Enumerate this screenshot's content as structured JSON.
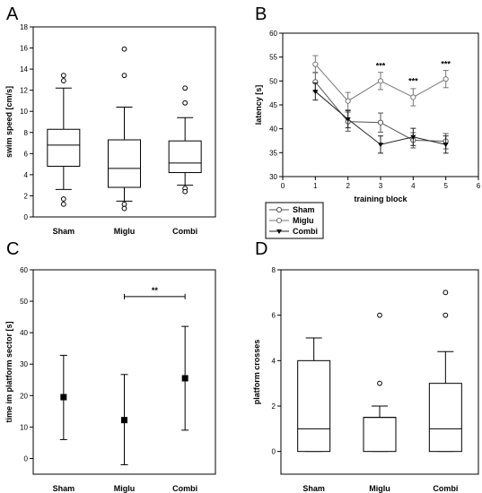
{
  "colors": {
    "ink": "#000000",
    "background": "#ffffff",
    "sham_line": "#555555",
    "miglu_line": "#777777",
    "combi_line": "#222222"
  },
  "chart_data": [
    {
      "panel": "A",
      "type": "box",
      "ylabel": "swim speed [cm/s]",
      "ylim": [
        0,
        18
      ],
      "yticks": [
        0,
        2,
        4,
        6,
        8,
        10,
        12,
        14,
        16,
        18
      ],
      "categories": [
        "Sham",
        "Miglu",
        "Combi"
      ],
      "boxes": [
        {
          "whisker_low": 2.6,
          "q1": 4.8,
          "median": 6.8,
          "q3": 8.3,
          "whisker_high": 12.2,
          "outliers": [
            13.4,
            12.9,
            1.7,
            1.2
          ]
        },
        {
          "whisker_low": 1.5,
          "q1": 2.8,
          "median": 4.6,
          "q3": 7.3,
          "whisker_high": 10.4,
          "outliers": [
            15.9,
            13.4,
            1.2,
            0.8
          ]
        },
        {
          "whisker_low": 3.0,
          "q1": 4.2,
          "median": 5.1,
          "q3": 7.2,
          "whisker_high": 9.4,
          "outliers": [
            12.2,
            10.8,
            2.7,
            2.4
          ]
        }
      ]
    },
    {
      "panel": "B",
      "type": "line",
      "xlabel": "training block",
      "ylabel": "latency [s]",
      "xlim": [
        0,
        6
      ],
      "ylim": [
        30,
        60
      ],
      "xticks": [
        0,
        1,
        2,
        3,
        4,
        5,
        6
      ],
      "yticks": [
        30,
        35,
        40,
        45,
        50,
        55,
        60
      ],
      "x": [
        1,
        2,
        3,
        4,
        5
      ],
      "series": [
        {
          "name": "Sham",
          "marker": "open-circle",
          "values": [
            49.8,
            41.5,
            41.3,
            37.6,
            37.4
          ],
          "err": [
            2.0,
            2.0,
            2.0,
            1.6,
            1.6
          ]
        },
        {
          "name": "Miglu",
          "marker": "open-circle",
          "values": [
            53.5,
            45.8,
            50.0,
            46.6,
            50.4
          ],
          "err": [
            1.8,
            1.8,
            1.8,
            1.8,
            1.8
          ]
        },
        {
          "name": "Combi",
          "marker": "filled-triangle",
          "values": [
            47.8,
            42.0,
            36.7,
            38.3,
            36.7
          ],
          "err": [
            1.8,
            1.8,
            1.8,
            1.8,
            1.8
          ]
        }
      ],
      "annotations": [
        {
          "x": 3,
          "y": 52.6,
          "text": "***"
        },
        {
          "x": 4,
          "y": 49.4,
          "text": "***"
        },
        {
          "x": 5,
          "y": 53.0,
          "text": "***"
        }
      ]
    },
    {
      "panel": "C",
      "type": "scatter",
      "ylabel": "time im platform sector [s]",
      "ylim": [
        -5,
        60
      ],
      "yticks": [
        0,
        10,
        20,
        30,
        40,
        50,
        60
      ],
      "categories": [
        "Sham",
        "Miglu",
        "Combi"
      ],
      "points": [
        {
          "mean": 19.5,
          "low": 6.0,
          "high": 32.8
        },
        {
          "mean": 12.2,
          "low": -2.0,
          "high": 26.7
        },
        {
          "mean": 25.5,
          "low": 9.0,
          "high": 42.0
        }
      ],
      "bracket": {
        "from": 1,
        "to": 2,
        "y": 51.5,
        "text": "**"
      }
    },
    {
      "panel": "D",
      "type": "box",
      "ylabel": "platform crosses",
      "ylim": [
        -1,
        8
      ],
      "yticks": [
        0,
        2,
        4,
        6,
        8
      ],
      "categories": [
        "Sham",
        "Miglu",
        "Combi"
      ],
      "boxes": [
        {
          "whisker_low": 0,
          "q1": 0,
          "median": 1.0,
          "q3": 4.0,
          "whisker_high": 5.0,
          "outliers": []
        },
        {
          "whisker_low": 0,
          "q1": 0,
          "median": 1.5,
          "q3": 1.5,
          "whisker_high": 2.0,
          "outliers": [
            6.0,
            3.0
          ]
        },
        {
          "whisker_low": 0,
          "q1": 0,
          "median": 1.0,
          "q3": 3.0,
          "whisker_high": 4.4,
          "outliers": [
            7.0,
            6.0
          ]
        }
      ]
    }
  ]
}
